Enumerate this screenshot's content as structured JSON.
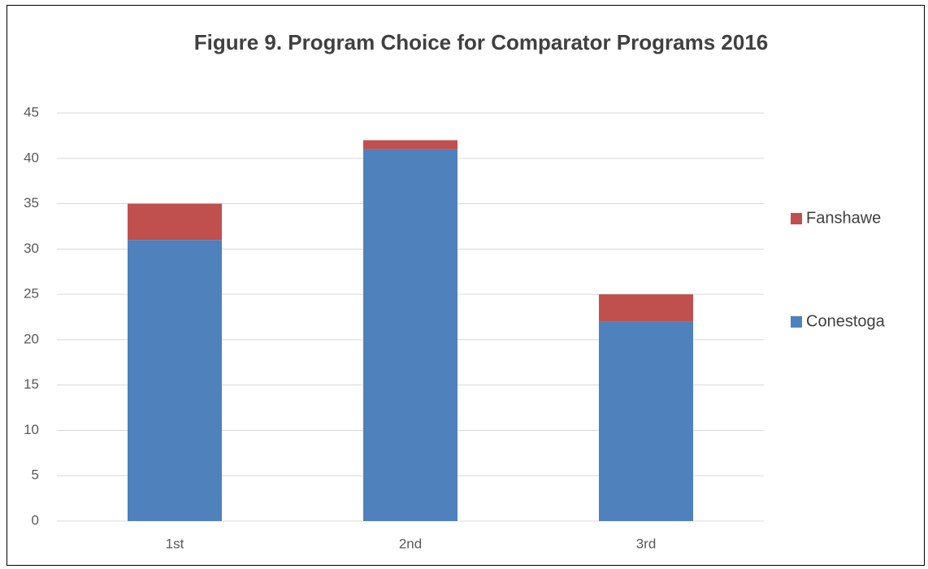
{
  "chart_data": {
    "type": "stacked_bar",
    "title": "Figure 9. Program Choice for Comparator Programs 2016",
    "categories": [
      "1st",
      "2nd",
      "3rd"
    ],
    "series": [
      {
        "name": "Conestoga",
        "color": "#4f81bd",
        "values": [
          31,
          41,
          22
        ]
      },
      {
        "name": "Fanshawe",
        "color": "#c0504d",
        "values": [
          4,
          1,
          3
        ]
      }
    ],
    "ylim": [
      0,
      45
    ],
    "yticks": [
      0,
      5,
      10,
      15,
      20,
      25,
      30,
      35,
      40,
      45
    ],
    "grid": true,
    "legend": "right"
  }
}
